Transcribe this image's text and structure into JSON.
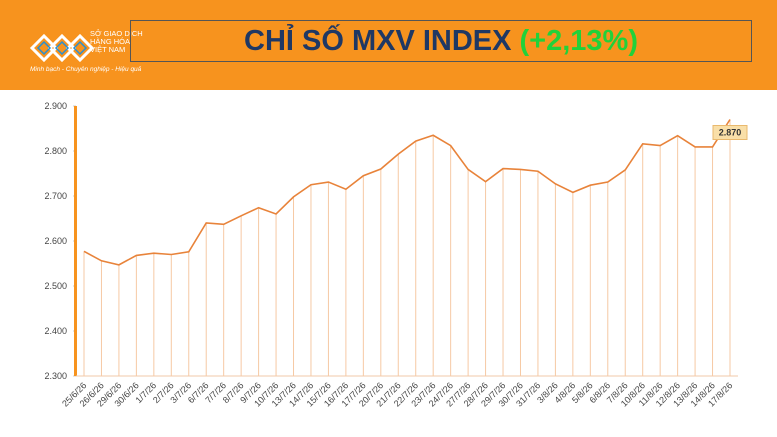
{
  "header": {
    "org_line1": "SỞ GIAO DỊCH",
    "org_line2": "HÀNG HÓA",
    "org_line3": "VIỆT NAM",
    "tagline": "Minh bạch - Chuyên nghiệp - Hiệu quả",
    "title": "CHỈ SỐ MXV INDEX",
    "title_change": "(+2,13%)"
  },
  "chart_data": {
    "type": "line",
    "categories": [
      "25/6/26",
      "26/6/26",
      "29/6/26",
      "30/6/26",
      "1/7/26",
      "2/7/26",
      "3/7/26",
      "6/7/26",
      "7/7/26",
      "8/7/26",
      "9/7/26",
      "10/7/26",
      "13/7/26",
      "14/7/26",
      "15/7/26",
      "16/7/26",
      "17/7/26",
      "20/7/26",
      "21/7/26",
      "22/7/26",
      "23/7/26",
      "24/7/26",
      "27/7/26",
      "28/7/26",
      "29/7/26",
      "30/7/26",
      "31/7/26",
      "3/8/26",
      "4/8/26",
      "5/8/26",
      "6/8/26",
      "7/8/26",
      "10/8/26",
      "11/8/26",
      "12/8/26",
      "13/8/26",
      "14/8/26",
      "17/8/26"
    ],
    "values": [
      2577,
      2556,
      2547,
      2568,
      2573,
      2570,
      2576,
      2640,
      2637,
      2656,
      2674,
      2660,
      2698,
      2725,
      2731,
      2715,
      2745,
      2760,
      2793,
      2822,
      2835,
      2812,
      2759,
      2732,
      2761,
      2759,
      2755,
      2727,
      2708,
      2724,
      2731,
      2758,
      2816,
      2812,
      2834,
      2809,
      2809,
      2870
    ],
    "value_labels": [
      null,
      null,
      null,
      null,
      null,
      null,
      null,
      null,
      null,
      null,
      null,
      null,
      null,
      null,
      null,
      null,
      null,
      null,
      null,
      null,
      null,
      null,
      null,
      null,
      null,
      null,
      null,
      null,
      null,
      null,
      null,
      null,
      null,
      null,
      null,
      null,
      null,
      "2.870"
    ],
    "color": "#e8833a",
    "ylim": [
      2300,
      2900
    ],
    "yticks": [
      {
        "value": 2300,
        "label": "2.300"
      },
      {
        "value": 2400,
        "label": "2.400"
      },
      {
        "value": 2500,
        "label": "2.500"
      },
      {
        "value": 2600,
        "label": "2.600"
      },
      {
        "value": 2700,
        "label": "2.700"
      },
      {
        "value": 2800,
        "label": "2.800"
      },
      {
        "value": 2900,
        "label": "2.900"
      }
    ]
  }
}
